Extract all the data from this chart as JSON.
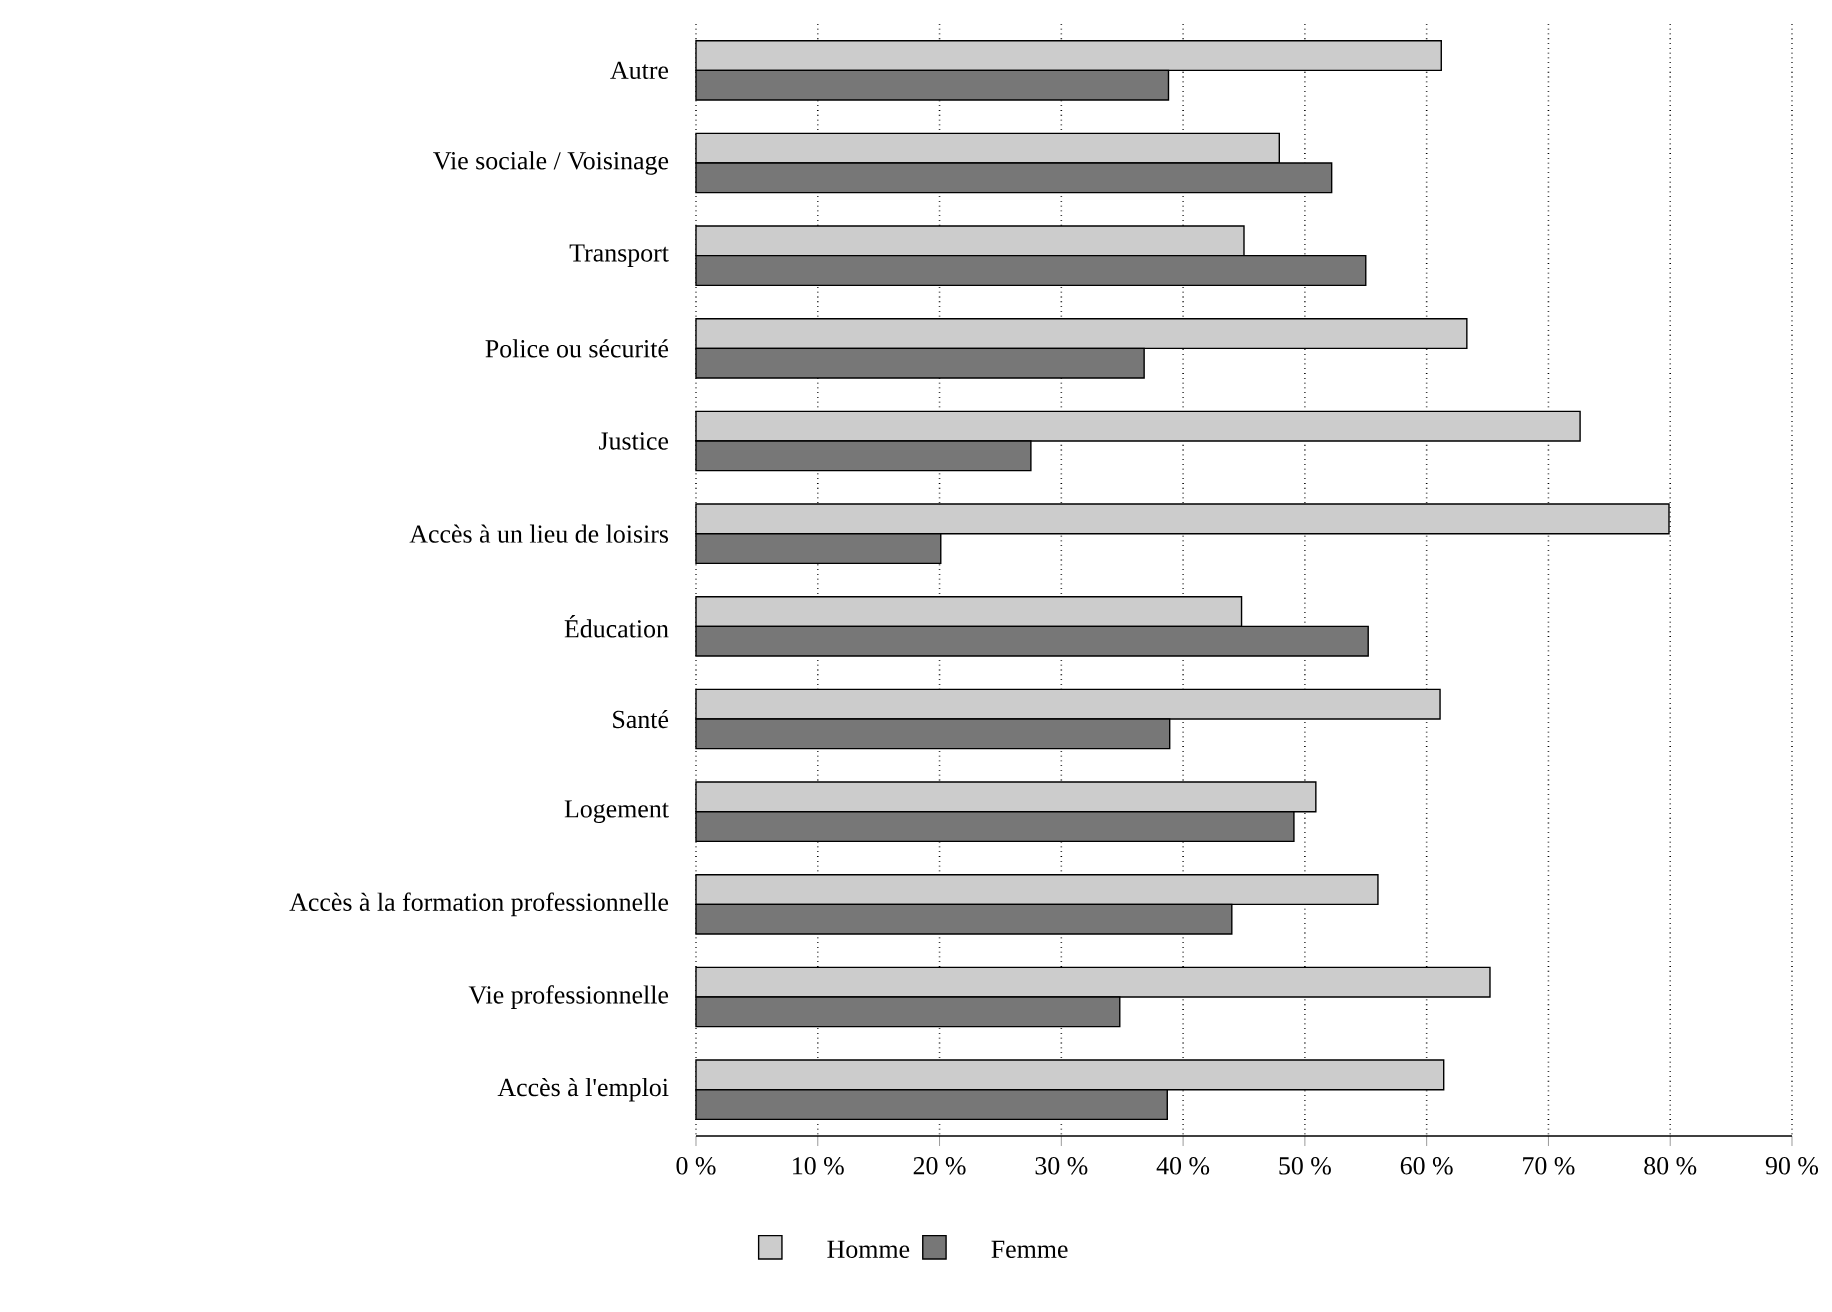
{
  "chart_data": {
    "type": "bar",
    "orientation": "horizontal",
    "categories": [
      "Autre",
      "Vie sociale / Voisinage",
      "Transport",
      "Police ou sécurité",
      "Justice",
      "Accès à un lieu de loisirs",
      "Éducation",
      "Santé",
      "Logement",
      "Accès à la formation professionnelle",
      "Vie professionnelle",
      "Accès à l'emploi"
    ],
    "series": [
      {
        "name": "Homme",
        "color": "#cccccc",
        "values": [
          61.2,
          47.9,
          45.0,
          63.3,
          72.6,
          79.9,
          44.8,
          61.1,
          50.9,
          56.0,
          65.2,
          61.4
        ]
      },
      {
        "name": "Femme",
        "color": "#777777",
        "values": [
          38.8,
          52.2,
          55.0,
          36.8,
          27.5,
          20.1,
          55.2,
          38.9,
          49.1,
          44.0,
          34.8,
          38.7
        ]
      }
    ],
    "xlim": [
      0,
      90
    ],
    "xticks": [
      {
        "value": 0,
        "label": "0 %"
      },
      {
        "value": 10,
        "label": "10 %"
      },
      {
        "value": 20,
        "label": "20 %"
      },
      {
        "value": 30,
        "label": "30 %"
      },
      {
        "value": 40,
        "label": "40 %"
      },
      {
        "value": 50,
        "label": "50 %"
      },
      {
        "value": 60,
        "label": "60 %"
      },
      {
        "value": 70,
        "label": "70 %"
      },
      {
        "value": 80,
        "label": "80 %"
      },
      {
        "value": 90,
        "label": "90 %"
      }
    ],
    "grid": "x",
    "legend": "bottom"
  }
}
